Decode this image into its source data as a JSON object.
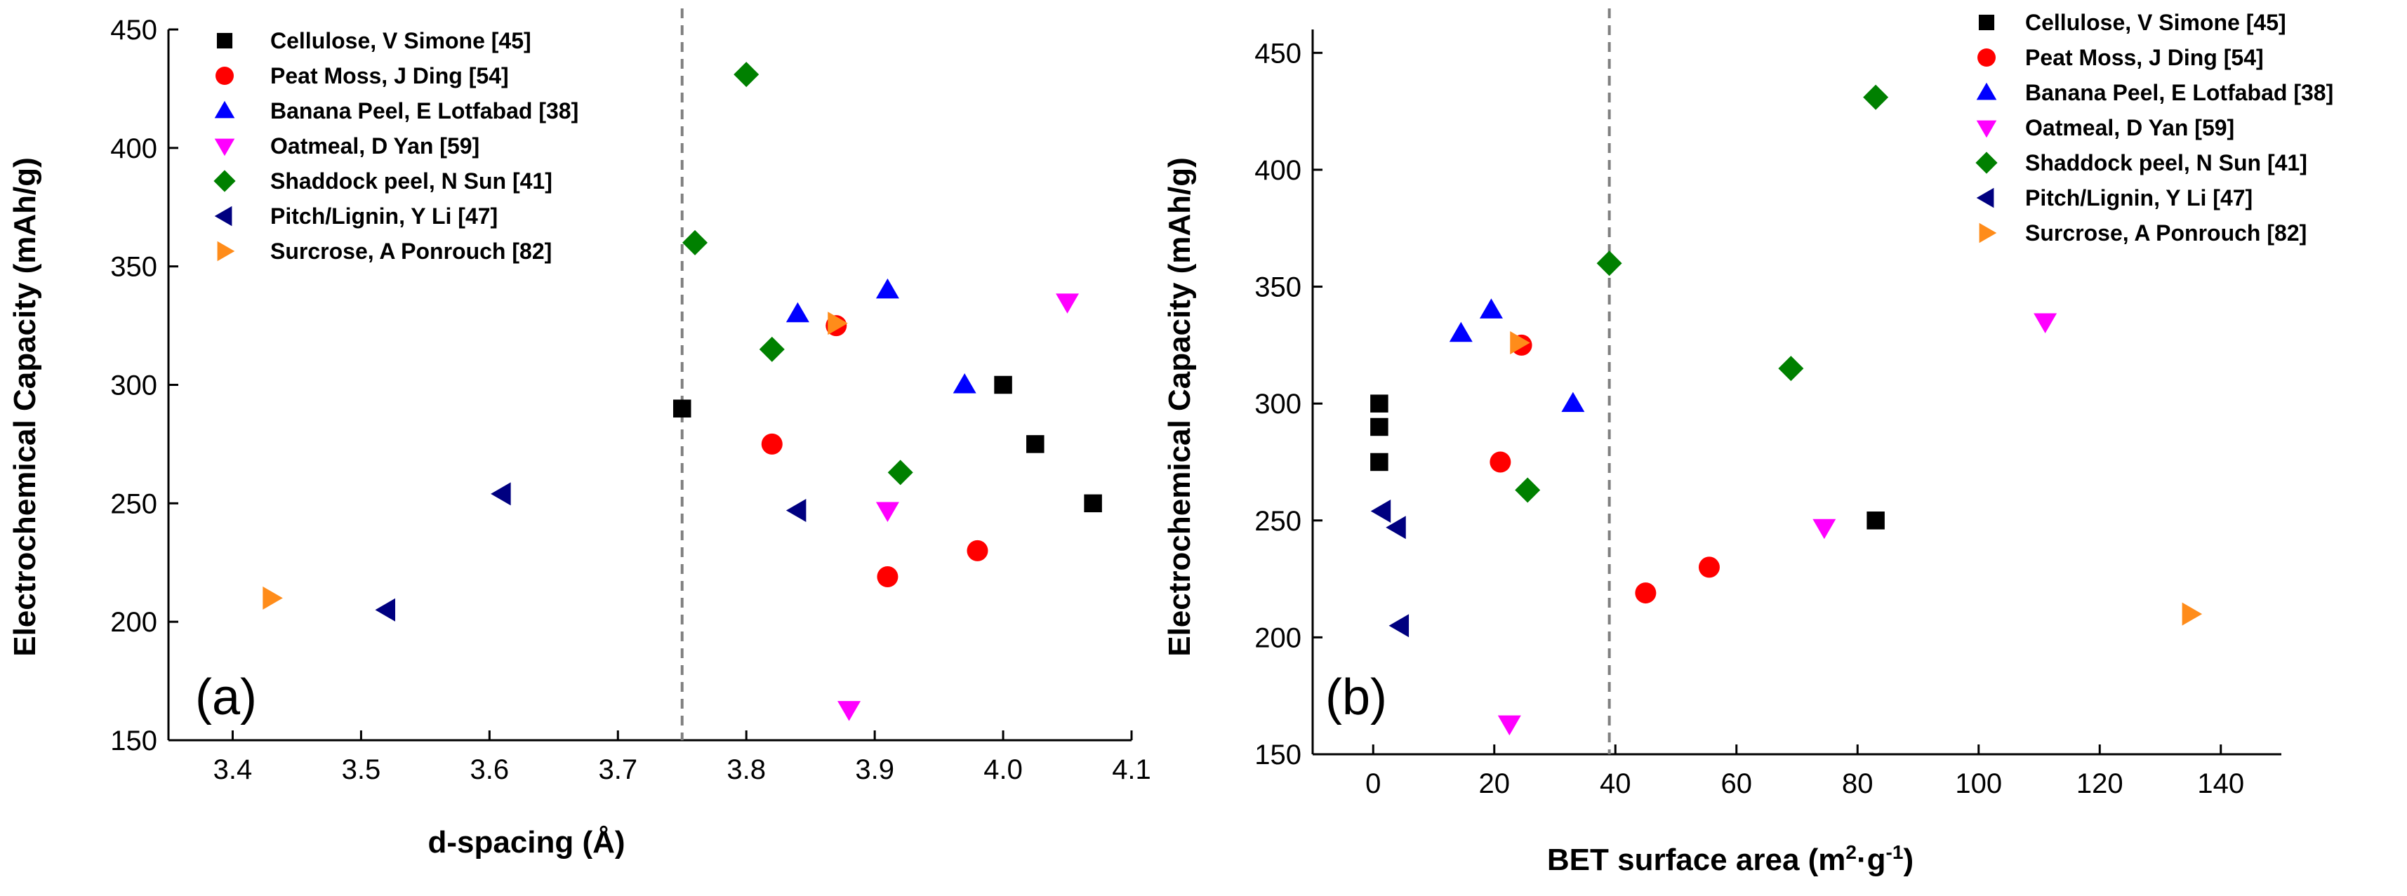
{
  "chart_data": [
    {
      "type": "scatter",
      "panel_label": "(a)",
      "xlabel": "d-spacing (Å)",
      "ylabel": "Electrochemical Capacity (mAh/g)",
      "xlim": [
        3.35,
        4.1
      ],
      "ylim": [
        150,
        450
      ],
      "xticks": [
        "3.4",
        "3.5",
        "3.6",
        "3.7",
        "3.8",
        "3.9",
        "4.0",
        "4.1"
      ],
      "yticks": [
        "150",
        "200",
        "250",
        "300",
        "350",
        "400",
        "450"
      ],
      "reference_line_x": 3.75,
      "legend_position": "top-left",
      "series": [
        {
          "name": "Cellulose, V Simone [45]",
          "marker": "square",
          "color": "#000000",
          "x": [
            3.75,
            4.0,
            4.025,
            4.07
          ],
          "y": [
            290,
            300,
            275,
            250
          ]
        },
        {
          "name": "Peat Moss, J Ding [54]",
          "marker": "circle",
          "color": "#ff0000",
          "x": [
            3.82,
            3.87,
            3.91,
            3.98
          ],
          "y": [
            275,
            325,
            219,
            230
          ]
        },
        {
          "name": "Banana Peel, E Lotfabad [38]",
          "marker": "triangle-up",
          "color": "#0000ff",
          "x": [
            3.84,
            3.91,
            3.97
          ],
          "y": [
            330,
            340,
            300
          ]
        },
        {
          "name": "Oatmeal, D Yan [59]",
          "marker": "triangle-down",
          "color": "#ff00ff",
          "x": [
            3.88,
            3.91,
            4.05
          ],
          "y": [
            163,
            247,
            335
          ]
        },
        {
          "name": "Shaddock peel, N Sun [41]",
          "marker": "diamond",
          "color": "#008000",
          "x": [
            3.76,
            3.8,
            3.82,
            3.92
          ],
          "y": [
            360,
            431,
            315,
            263
          ]
        },
        {
          "name": "Pitch/Lignin, Y Li [47]",
          "marker": "triangle-left",
          "color": "#000080",
          "x": [
            3.52,
            3.61,
            3.84
          ],
          "y": [
            205,
            254,
            247
          ]
        },
        {
          "name": "Surcrose, A Ponrouch [82]",
          "marker": "triangle-right",
          "color": "#ff8c1a",
          "x": [
            3.43,
            3.87
          ],
          "y": [
            210,
            326
          ]
        }
      ]
    },
    {
      "type": "scatter",
      "panel_label": "(b)",
      "xlabel": "BET surface area (m²·g⁻¹)",
      "ylabel": "Electrochemical Capacity (mAh/g)",
      "xlim": [
        -10,
        150
      ],
      "ylim": [
        150,
        460
      ],
      "xticks": [
        "0",
        "20",
        "40",
        "60",
        "80",
        "100",
        "120",
        "140"
      ],
      "yticks": [
        "150",
        "200",
        "250",
        "300",
        "350",
        "400",
        "450"
      ],
      "reference_line_x": 39,
      "legend_position": "top-right",
      "series": [
        {
          "name": "Cellulose, V Simone [45]",
          "marker": "square",
          "color": "#000000",
          "x": [
            1,
            1,
            1,
            83
          ],
          "y": [
            300,
            290,
            275,
            250
          ]
        },
        {
          "name": "Peat Moss, J Ding [54]",
          "marker": "circle",
          "color": "#ff0000",
          "x": [
            21,
            24.5,
            45,
            55.5
          ],
          "y": [
            275,
            325,
            219,
            230
          ]
        },
        {
          "name": "Banana Peel, E Lotfabad [38]",
          "marker": "triangle-up",
          "color": "#0000ff",
          "x": [
            14.5,
            19.5,
            33
          ],
          "y": [
            330,
            340,
            300
          ]
        },
        {
          "name": "Oatmeal, D Yan [59]",
          "marker": "triangle-down",
          "color": "#ff00ff",
          "x": [
            22.5,
            74.5,
            111
          ],
          "y": [
            163,
            247,
            335
          ]
        },
        {
          "name": "Shaddock peel, N Sun [41]",
          "marker": "diamond",
          "color": "#008000",
          "x": [
            25.5,
            39,
            69,
            83
          ],
          "y": [
            263,
            360,
            315,
            431
          ]
        },
        {
          "name": "Pitch/Lignin, Y Li [47]",
          "marker": "triangle-left",
          "color": "#000080",
          "x": [
            1.5,
            4,
            4.5
          ],
          "y": [
            254,
            247,
            205
          ]
        },
        {
          "name": "Surcrose, A Ponrouch [82]",
          "marker": "triangle-right",
          "color": "#ff8c1a",
          "x": [
            24,
            135
          ],
          "y": [
            326,
            210
          ]
        }
      ]
    }
  ]
}
